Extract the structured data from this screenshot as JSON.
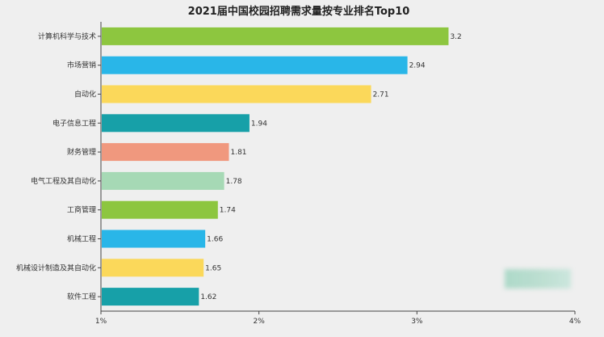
{
  "chart_data": {
    "type": "bar",
    "orientation": "horizontal",
    "title": "2021届中国校园招聘需求量按专业排名Top10",
    "categories": [
      "计算机科学与技术",
      "市场营销",
      "自动化",
      "电子信息工程",
      "财务管理",
      "电气工程及其自动化",
      "工商管理",
      "机械工程",
      "机械设计制造及其自动化",
      "软件工程"
    ],
    "values": [
      3.2,
      2.94,
      2.71,
      1.94,
      1.81,
      1.78,
      1.74,
      1.66,
      1.65,
      1.62
    ],
    "value_labels": [
      "3.2",
      "2.94",
      "2.71",
      "1.94",
      "1.81",
      "1.78",
      "1.74",
      "1.66",
      "1.65",
      "1.62"
    ],
    "colors": [
      "#8dc63f",
      "#29b6e8",
      "#fbd85a",
      "#17a0a8",
      "#f0987e",
      "#a6d9b5",
      "#8dc63f",
      "#29b6e8",
      "#fbd85a",
      "#17a0a8"
    ],
    "xlim": [
      1,
      4
    ],
    "xticks": [
      1,
      2,
      3,
      4
    ],
    "xtick_labels": [
      "1%",
      "2%",
      "3%",
      "4%"
    ],
    "xlabel": "",
    "ylabel": "",
    "grid": false,
    "legend": "none"
  }
}
